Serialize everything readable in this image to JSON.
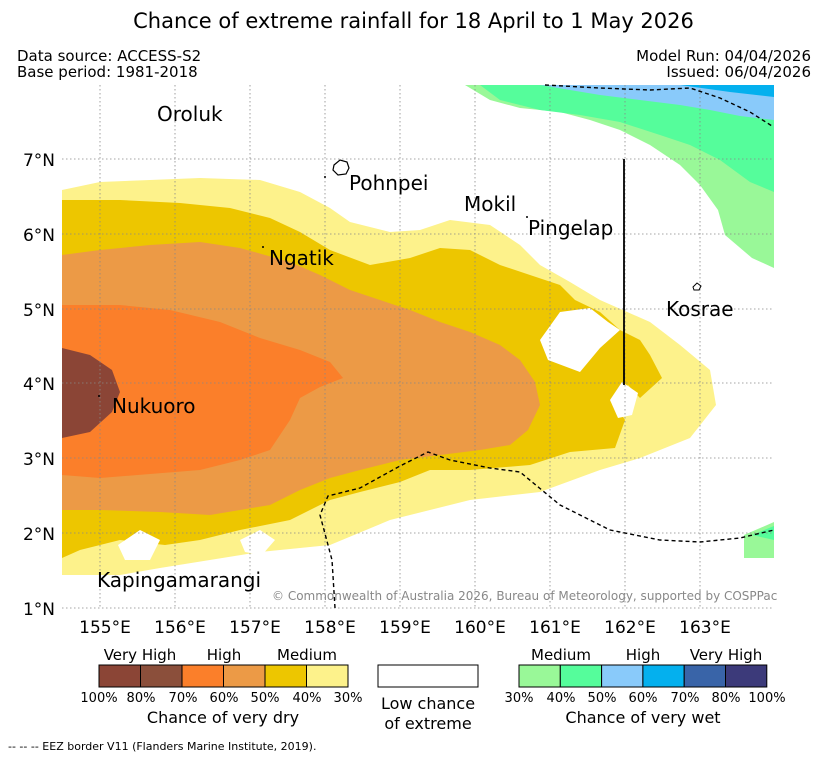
{
  "title": "Chance of extreme rainfall for 18 April to 1 May 2026",
  "meta": {
    "data_source": "Data source: ACCESS-S2",
    "base_period": "Base period: 1981-2018",
    "model_run": "Model Run: 04/04/2026",
    "issued": "Issued: 06/04/2026"
  },
  "axes": {
    "lat_labels": [
      "7°N",
      "6°N",
      "5°N",
      "4°N",
      "3°N",
      "2°N",
      "1°N"
    ],
    "lon_labels": [
      "155°E",
      "156°E",
      "157°E",
      "158°E",
      "159°E",
      "160°E",
      "161°E",
      "162°E",
      "163°E"
    ]
  },
  "places": [
    {
      "name": "Oroluk"
    },
    {
      "name": "Pohnpei"
    },
    {
      "name": "Mokil"
    },
    {
      "name": "Pingelap"
    },
    {
      "name": "Ngatik"
    },
    {
      "name": "Kosrae"
    },
    {
      "name": "Nukuoro"
    },
    {
      "name": "Kapingamarangi"
    }
  ],
  "copyright": "© Commonwealth of Australia 2026, Bureau of Meteorology, supported by COSPPac",
  "legend": {
    "dry": {
      "categories": [
        "Very High",
        "High",
        "Medium"
      ],
      "ticks": [
        "100%",
        "80%",
        "70%",
        "60%",
        "50%",
        "40%",
        "30%"
      ],
      "label": "Chance of very dry",
      "colors": [
        "#8b4536",
        "#8b4f3b",
        "#fb7f2a",
        "#ec9a46",
        "#edc600",
        "#fdf28b"
      ]
    },
    "low": {
      "line1": "Low chance",
      "line2": "of extreme"
    },
    "wet": {
      "categories": [
        "Medium",
        "High",
        "Very High"
      ],
      "ticks": [
        "30%",
        "40%",
        "50%",
        "60%",
        "70%",
        "80%",
        "100%"
      ],
      "label": "Chance of very wet",
      "colors": [
        "#99f898",
        "#55fd9b",
        "#89cafa",
        "#04b0ee",
        "#3964a8",
        "#3c3a7a"
      ]
    }
  },
  "footnote": "--  --  -- EEZ border V11 (Flanders Marine Institute, 2019)."
}
